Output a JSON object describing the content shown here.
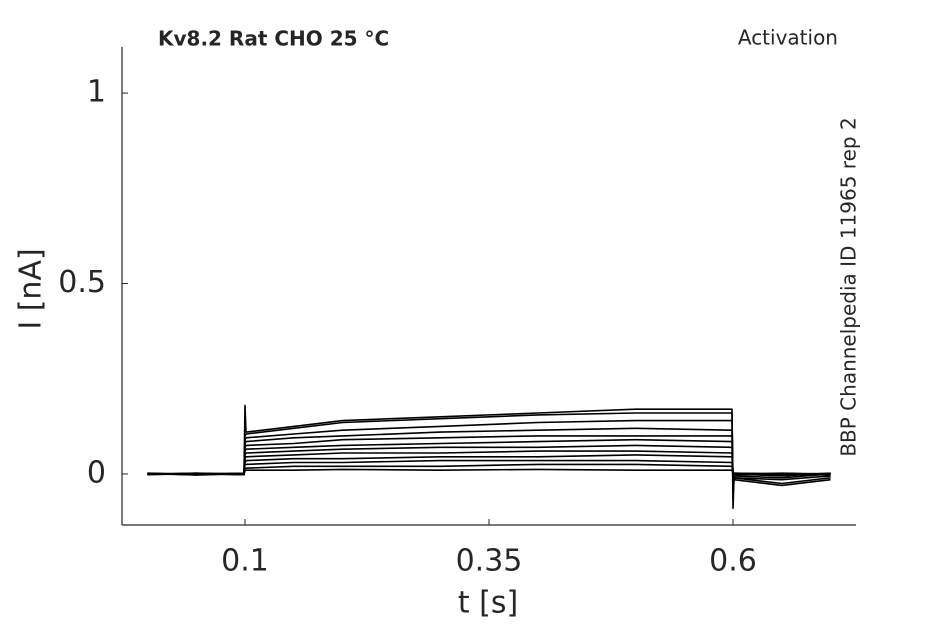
{
  "chart_data": {
    "type": "line",
    "title": "Kv8.2  Rat  CHO  25 °C",
    "subtitle": "Activation",
    "annotation": "BBP Channelpedia ID 11965 rep 2",
    "xlabel": "t [s]",
    "ylabel": "I [nA]",
    "x": [
      0,
      0.05,
      0.099,
      0.1,
      0.101,
      0.15,
      0.2,
      0.3,
      0.4,
      0.5,
      0.599,
      0.6,
      0.601,
      0.65,
      0.7
    ],
    "series": [
      {
        "color": "#000000",
        "values": [
          0,
          -0.002,
          0.001,
          0.18,
          0.11,
          0.125,
          0.14,
          0.15,
          0.16,
          0.17,
          0.17,
          -0.09,
          -0.01,
          -0.025,
          -0.01
        ]
      },
      {
        "color": "#000000",
        "values": [
          0.001,
          0,
          -0.002,
          0.1,
          0.105,
          0.12,
          0.135,
          0.145,
          0.155,
          0.16,
          0.16,
          -0.03,
          -0.015,
          -0.03,
          -0.015
        ]
      },
      {
        "color": "#000000",
        "values": [
          -0.001,
          0.002,
          0,
          0.09,
          0.095,
          0.105,
          0.115,
          0.125,
          0.135,
          0.14,
          0.14,
          -0.02,
          -0.01,
          -0.015,
          -0.005
        ]
      },
      {
        "color": "#000000",
        "values": [
          0.002,
          -0.003,
          0.001,
          0.08,
          0.085,
          0.095,
          0.1,
          0.11,
          0.115,
          0.12,
          0.115,
          -0.015,
          -0.005,
          -0.01,
          0
        ]
      },
      {
        "color": "#000000",
        "values": [
          0,
          0.001,
          -0.001,
          0.07,
          0.075,
          0.08,
          0.09,
          0.095,
          0.1,
          0.1,
          0.1,
          -0.01,
          0,
          -0.005,
          0.002
        ]
      },
      {
        "color": "#000000",
        "values": [
          0.001,
          -0.001,
          0.002,
          0.06,
          0.065,
          0.07,
          0.075,
          0.08,
          0.085,
          0.09,
          0.085,
          -0.01,
          0.002,
          0,
          -0.003
        ]
      },
      {
        "color": "#000000",
        "values": [
          -0.002,
          0.001,
          0,
          0.05,
          0.055,
          0.06,
          0.065,
          0.07,
          0.07,
          0.075,
          0.07,
          -0.005,
          0,
          0.002,
          0
        ]
      },
      {
        "color": "#000000",
        "values": [
          0,
          0.002,
          -0.001,
          0.04,
          0.045,
          0.05,
          0.055,
          0.055,
          0.06,
          0.06,
          0.055,
          0,
          -0.002,
          0,
          0.001
        ]
      },
      {
        "color": "#000000",
        "values": [
          0.001,
          -0.002,
          0.001,
          0.03,
          0.035,
          0.04,
          0.04,
          0.045,
          0.045,
          0.05,
          0.045,
          0,
          0.001,
          -0.002,
          0
        ]
      },
      {
        "color": "#000000",
        "values": [
          -0.001,
          0,
          0.002,
          0.025,
          0.025,
          0.03,
          0.03,
          0.035,
          0.035,
          0.035,
          0.03,
          0.002,
          0,
          0.001,
          -0.001
        ]
      },
      {
        "color": "#000000",
        "values": [
          0,
          0.001,
          -0.002,
          0.015,
          0.015,
          0.02,
          0.02,
          0.02,
          0.025,
          0.025,
          0.02,
          0,
          0.002,
          0,
          0.001
        ]
      },
      {
        "color": "#000000",
        "values": [
          0.002,
          -0.001,
          0,
          0.008,
          0.01,
          0.01,
          0.012,
          0.01,
          0.012,
          0.01,
          0.01,
          0.001,
          0,
          0.001,
          0
        ]
      }
    ],
    "xlim": [
      -0.026,
      0.726
    ],
    "ylim": [
      -0.134,
      1.121
    ],
    "xticks": [
      0.1,
      0.35,
      0.6
    ],
    "yticks": [
      0,
      0.5,
      1
    ],
    "grid": false
  }
}
